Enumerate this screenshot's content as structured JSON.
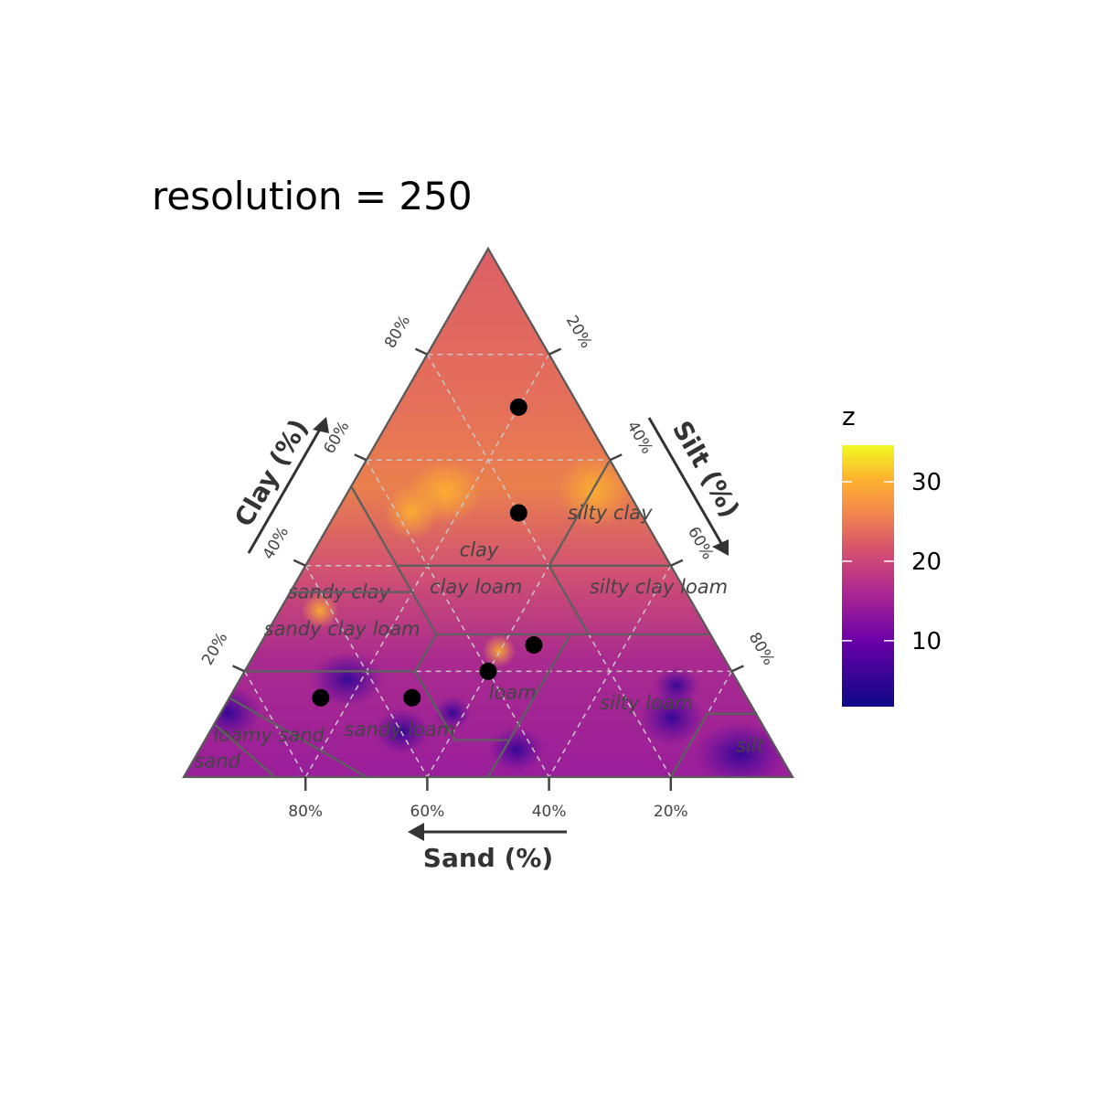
{
  "chart_data": {
    "type": "ternary-heatmap",
    "title": "resolution = 250",
    "axes": {
      "sand": {
        "label": "Sand (%)",
        "ticks": [
          "80%",
          "60%",
          "40%",
          "20%"
        ],
        "tick_values": [
          80,
          60,
          40,
          20
        ]
      },
      "clay": {
        "label": "Clay (%)",
        "ticks": [
          "20%",
          "40%",
          "60%",
          "80%"
        ],
        "tick_values": [
          20,
          40,
          60,
          80
        ]
      },
      "silt": {
        "label": "Silt (%)",
        "ticks": [
          "20%",
          "40%",
          "60%",
          "80%"
        ],
        "tick_values": [
          20,
          40,
          60,
          80
        ]
      }
    },
    "points": [
      {
        "sand": 10,
        "silt": 20,
        "clay": 70
      },
      {
        "sand": 20,
        "silt": 30,
        "clay": 50
      },
      {
        "sand": 30,
        "silt": 45,
        "clay": 25
      },
      {
        "sand": 40,
        "silt": 40,
        "clay": 20
      },
      {
        "sand": 55,
        "silt": 30,
        "clay": 15
      },
      {
        "sand": 70,
        "silt": 15,
        "clay": 15
      }
    ],
    "legend": {
      "title": "z",
      "ticks": [
        "10",
        "20",
        "30"
      ],
      "tick_values": [
        10,
        20,
        30
      ],
      "range": [
        1.7,
        34.6
      ],
      "placement": "right",
      "colors": [
        "#0d0887",
        "#6a00a8",
        "#b12a90",
        "#e16462",
        "#fca636",
        "#f0f921"
      ]
    },
    "texture_classes": [
      {
        "name": "clay",
        "label_at": [
          30,
          27,
          43
        ],
        "poly": [
          [
            0,
            0,
            100
          ],
          [
            0,
            40,
            60
          ],
          [
            20,
            40,
            40
          ],
          [
            45,
            15,
            40
          ],
          [
            45,
            0,
            55
          ]
        ]
      },
      {
        "name": "silty clay",
        "label_at": [
          5,
          45,
          50
        ],
        "poly": [
          [
            0,
            40,
            60
          ],
          [
            0,
            60,
            40
          ],
          [
            20,
            40,
            40
          ]
        ]
      },
      {
        "name": "sandy clay",
        "label_at": [
          57,
          8,
          35
        ],
        "poly": [
          [
            45,
            0,
            55
          ],
          [
            45,
            20,
            35
          ],
          [
            65,
            0,
            35
          ]
        ]
      },
      {
        "name": "silty clay loam",
        "label_at": [
          4,
          60,
          36
        ],
        "poly": [
          [
            0,
            60,
            40
          ],
          [
            0,
            73,
            27
          ],
          [
            20,
            53,
            27
          ],
          [
            20,
            40,
            40
          ]
        ]
      },
      {
        "name": "clay loam",
        "label_at": [
          34,
          30,
          36
        ],
        "poly": [
          [
            20,
            40,
            40
          ],
          [
            20,
            53,
            27
          ],
          [
            45,
            28,
            27
          ],
          [
            45,
            15,
            40
          ]
        ]
      },
      {
        "name": "sandy clay loam",
        "label_at": [
          60,
          12,
          28
        ],
        "poly": [
          [
            45,
            20,
            35
          ],
          [
            45,
            28,
            27
          ],
          [
            52,
            28,
            20
          ],
          [
            80,
            0,
            20
          ],
          [
            65,
            0,
            35
          ]
        ]
      },
      {
        "name": "loam",
        "label_at": [
          38,
          46,
          16
        ],
        "poly": [
          [
            45,
            28,
            27
          ],
          [
            23,
            50,
            27
          ],
          [
            43,
            50,
            7
          ],
          [
            52,
            41,
            7
          ],
          [
            52,
            28,
            20
          ]
        ]
      },
      {
        "name": "silty loam",
        "label_at": [
          17,
          69,
          14
        ],
        "poly": [
          [
            23,
            50,
            27
          ],
          [
            0,
            73,
            27
          ],
          [
            0,
            88,
            12
          ],
          [
            8,
            80,
            12
          ],
          [
            20,
            80,
            0
          ],
          [
            50,
            50,
            0
          ],
          [
            43,
            50,
            7
          ]
        ]
      },
      {
        "name": "silt",
        "label_at": [
          4,
          90,
          6
        ],
        "poly": [
          [
            0,
            88,
            12
          ],
          [
            0,
            100,
            0
          ],
          [
            20,
            80,
            0
          ],
          [
            8,
            80,
            12
          ]
        ]
      },
      {
        "name": "sandy loam",
        "label_at": [
          60,
          31,
          9
        ],
        "poly": [
          [
            80,
            0,
            20
          ],
          [
            52,
            28,
            20
          ],
          [
            52,
            41,
            7
          ],
          [
            43,
            50,
            7
          ],
          [
            50,
            50,
            0
          ],
          [
            70,
            30,
            0
          ],
          [
            85,
            0,
            15
          ]
        ]
      },
      {
        "name": "loamy sand",
        "label_at": [
          82,
          10,
          8
        ],
        "poly": [
          [
            85,
            0,
            15
          ],
          [
            70,
            30,
            0
          ],
          [
            85,
            15,
            0
          ],
          [
            90,
            0,
            10
          ]
        ]
      },
      {
        "name": "sand",
        "label_at": [
          92,
          4,
          3
        ],
        "poly": [
          [
            90,
            0,
            10
          ],
          [
            85,
            15,
            0
          ],
          [
            100,
            0,
            0
          ]
        ]
      }
    ]
  }
}
